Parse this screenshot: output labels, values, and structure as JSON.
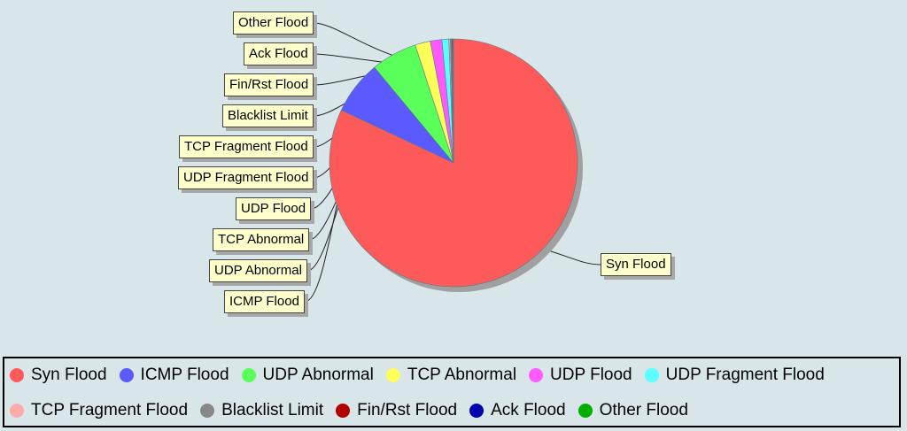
{
  "chart_data": {
    "type": "pie",
    "title": "",
    "slices": [
      {
        "label": "Syn Flood",
        "value": 82.0,
        "color": "#ff5a5a"
      },
      {
        "label": "ICMP Flood",
        "value": 7.0,
        "color": "#5a5aff"
      },
      {
        "label": "UDP Abnormal",
        "value": 6.0,
        "color": "#5aff5a"
      },
      {
        "label": "TCP Abnormal",
        "value": 2.0,
        "color": "#ffff5a"
      },
      {
        "label": "UDP Flood",
        "value": 1.5,
        "color": "#ff5aff"
      },
      {
        "label": "UDP Fragment Flood",
        "value": 0.9,
        "color": "#5affff"
      },
      {
        "label": "TCP Fragment Flood",
        "value": 0.2,
        "color": "#ffaaaa"
      },
      {
        "label": "Blacklist Limit",
        "value": 0.15,
        "color": "#888888"
      },
      {
        "label": "Fin/Rst Flood",
        "value": 0.1,
        "color": "#b00000"
      },
      {
        "label": "Ack Flood",
        "value": 0.08,
        "color": "#0000b0"
      },
      {
        "label": "Other Flood",
        "value": 0.07,
        "color": "#00b000"
      }
    ],
    "legend": "bottom"
  }
}
